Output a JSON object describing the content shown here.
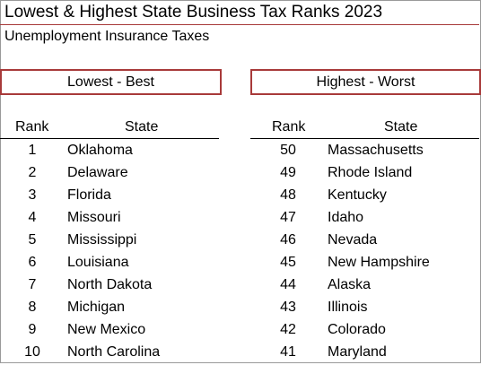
{
  "title": "Lowest & Highest  State Business Tax Ranks 2023",
  "subtitle": "Unemployment Insurance Taxes",
  "lowest": {
    "header": "Lowest - Best",
    "col_rank": "Rank",
    "col_state": "State",
    "rows": [
      {
        "rank": "1",
        "state": "Oklahoma"
      },
      {
        "rank": "2",
        "state": "Delaware"
      },
      {
        "rank": "3",
        "state": "Florida"
      },
      {
        "rank": "4",
        "state": "Missouri"
      },
      {
        "rank": "5",
        "state": "Mississippi"
      },
      {
        "rank": "6",
        "state": "Louisiana"
      },
      {
        "rank": "7",
        "state": "North Dakota"
      },
      {
        "rank": "8",
        "state": "Michigan"
      },
      {
        "rank": "9",
        "state": "New Mexico"
      },
      {
        "rank": "10",
        "state": "North Carolina"
      }
    ]
  },
  "highest": {
    "header": "Highest - Worst",
    "col_rank": "Rank",
    "col_state": "State",
    "rows": [
      {
        "rank": "50",
        "state": "Massachusetts"
      },
      {
        "rank": "49",
        "state": "Rhode Island"
      },
      {
        "rank": "48",
        "state": "Kentucky"
      },
      {
        "rank": "47",
        "state": "Idaho"
      },
      {
        "rank": "46",
        "state": "Nevada"
      },
      {
        "rank": "45",
        "state": "New Hampshire"
      },
      {
        "rank": "44",
        "state": "Alaska"
      },
      {
        "rank": "43",
        "state": "Illinois"
      },
      {
        "rank": "42",
        "state": "Colorado"
      },
      {
        "rank": "41",
        "state": "Maryland"
      }
    ]
  },
  "colors": {
    "accent_border": "#a83a3a",
    "grid_border": "#9a9a9a"
  }
}
